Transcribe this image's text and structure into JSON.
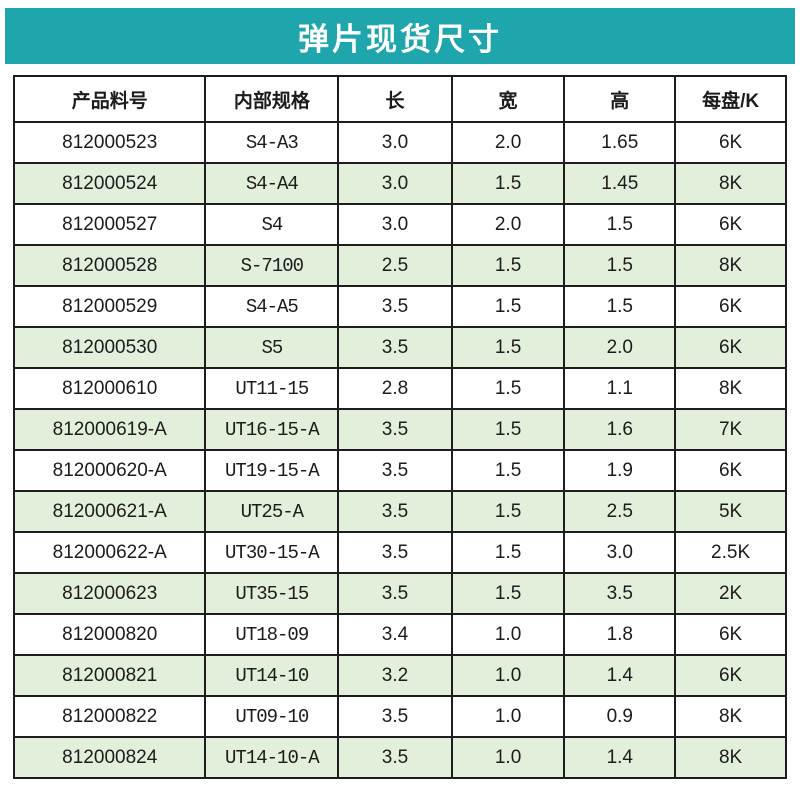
{
  "banner": {
    "title": "弹片现货尺寸"
  },
  "table": {
    "columns": [
      "产品料号",
      "内部规格",
      "长",
      "宽",
      "高",
      "每盘/K"
    ],
    "rows": [
      [
        "812000523",
        "S4-A3",
        "3.0",
        "2.0",
        "1.65",
        "6K"
      ],
      [
        "812000524",
        "S4-A4",
        "3.0",
        "1.5",
        "1.45",
        "8K"
      ],
      [
        "812000527",
        "S4",
        "3.0",
        "2.0",
        "1.5",
        "6K"
      ],
      [
        "812000528",
        "S-7100",
        "2.5",
        "1.5",
        "1.5",
        "8K"
      ],
      [
        "812000529",
        "S4-A5",
        "3.5",
        "1.5",
        "1.5",
        "6K"
      ],
      [
        "812000530",
        "S5",
        "3.5",
        "1.5",
        "2.0",
        "6K"
      ],
      [
        "812000610",
        "UT11-15",
        "2.8",
        "1.5",
        "1.1",
        "8K"
      ],
      [
        "812000619-A",
        "UT16-15-A",
        "3.5",
        "1.5",
        "1.6",
        "7K"
      ],
      [
        "812000620-A",
        "UT19-15-A",
        "3.5",
        "1.5",
        "1.9",
        "6K"
      ],
      [
        "812000621-A",
        "UT25-A",
        "3.5",
        "1.5",
        "2.5",
        "5K"
      ],
      [
        "812000622-A",
        "UT30-15-A",
        "3.5",
        "1.5",
        "3.0",
        "2.5K"
      ],
      [
        "812000623",
        "UT35-15",
        "3.5",
        "1.5",
        "3.5",
        "2K"
      ],
      [
        "812000820",
        "UT18-09",
        "3.4",
        "1.0",
        "1.8",
        "6K"
      ],
      [
        "812000821",
        "UT14-10",
        "3.2",
        "1.0",
        "1.4",
        "6K"
      ],
      [
        "812000822",
        "UT09-10",
        "3.5",
        "1.0",
        "0.9",
        "8K"
      ],
      [
        "812000824",
        "UT14-10-A",
        "3.5",
        "1.0",
        "1.4",
        "8K"
      ]
    ]
  },
  "colors": {
    "banner_teal": "#1FA6AD",
    "row_alt_green": "#E2EFDA",
    "border_dark": "#1D1D1D"
  }
}
